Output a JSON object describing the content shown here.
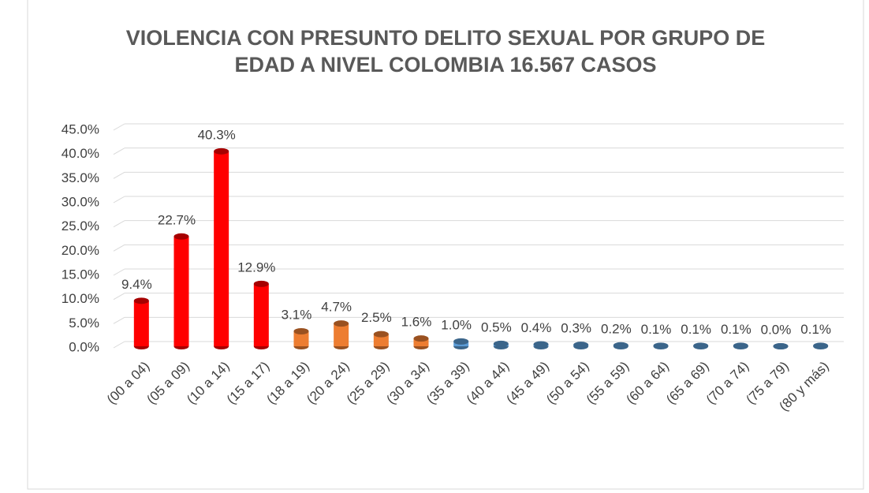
{
  "chart_data": {
    "type": "bar",
    "title": [
      "VIOLENCIA CON PRESUNTO DELITO SEXUAL POR  GRUPO DE",
      "EDAD A NIVEL COLOMBIA 16.567 CASOS"
    ],
    "categories": [
      "(00 a 04)",
      "(05 a 09)",
      "(10 a 14)",
      "(15 a 17)",
      "(18 a 19)",
      "(20 a 24)",
      "(25 a 29)",
      "(30 a 34)",
      "(35 a 39)",
      "(40 a 44)",
      "(45 a 49)",
      "(50 a 54)",
      "(55 a 59)",
      "(60 a 64)",
      "(65 a 69)",
      "(70 a 74)",
      "(75 a 79)",
      "(80 y más)"
    ],
    "values": [
      9.4,
      22.7,
      40.3,
      12.9,
      3.1,
      4.7,
      2.5,
      1.6,
      1.0,
      0.5,
      0.4,
      0.3,
      0.2,
      0.1,
      0.1,
      0.1,
      0.0,
      0.1
    ],
    "value_labels": [
      "9.4%",
      "22.7%",
      "40.3%",
      "12.9%",
      "3.1%",
      "4.7%",
      "2.5%",
      "1.6%",
      "1.0%",
      "0.5%",
      "0.4%",
      "0.3%",
      "0.2%",
      "0.1%",
      "0.1%",
      "0.1%",
      "0.0%",
      "0.1%"
    ],
    "colors": [
      "#ff0000",
      "#ff0000",
      "#ff0000",
      "#ff0000",
      "#ed7d31",
      "#ed7d31",
      "#ed7d31",
      "#ed7d31",
      "#5b9bd5",
      "#5b9bd5",
      "#5b9bd5",
      "#5b9bd5",
      "#5b9bd5",
      "#5b9bd5",
      "#5b9bd5",
      "#5b9bd5",
      "#5b9bd5",
      "#5b9bd5"
    ],
    "ylim": [
      0,
      45
    ],
    "yticks": [
      {
        "value": 0,
        "label": "0.0%"
      },
      {
        "value": 5,
        "label": "5.0%"
      },
      {
        "value": 10,
        "label": "10.0%"
      },
      {
        "value": 15,
        "label": "15.0%"
      },
      {
        "value": 20,
        "label": "20.0%"
      },
      {
        "value": 25,
        "label": "25.0%"
      },
      {
        "value": 30,
        "label": "30.0%"
      },
      {
        "value": 35,
        "label": "35.0%"
      },
      {
        "value": 40,
        "label": "40.0%"
      },
      {
        "value": 45,
        "label": "45.0%"
      }
    ],
    "grid": true
  }
}
